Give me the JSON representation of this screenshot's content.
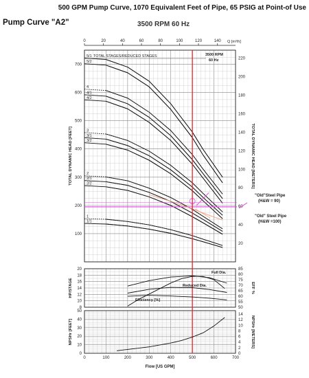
{
  "header": {
    "title": "500 GPM Pump Curve, 1070 Equivalent Feet of Pipe, 65 PSIG at Point-of Use",
    "subtitle": "Pump Curve \"A2\"",
    "speed": "3500 RPM 60 Hz"
  },
  "chart_data": [
    {
      "type": "line",
      "ylabel": "TOTAL DYNAMIC HEAD [FEET]",
      "y2label": "TOTAL DYNAMIC HEAD [METERS]",
      "top_xlabel": "Q [m³/h]",
      "ylim": [
        0,
        750
      ],
      "y2lim": [
        0,
        228.6
      ],
      "xlim": [
        0,
        700
      ],
      "yticks": [
        100,
        200,
        300,
        400,
        500,
        600,
        700
      ],
      "y2ticks": [
        20,
        40,
        60,
        80,
        100,
        120,
        140,
        160,
        180,
        200,
        220
      ],
      "top_xticks": [
        0,
        20,
        40,
        60,
        80,
        100,
        120,
        140
      ],
      "legend_header": "TOTAL STAGES/REDUCED STAGES",
      "speed_label": [
        "3500 RPM",
        "60 Hz"
      ],
      "series": [
        {
          "name": "5/1",
          "values": [
            [
              0,
              722
            ],
            [
              100,
              717
            ],
            [
              200,
              690
            ],
            [
              300,
              640
            ],
            [
              400,
              560
            ],
            [
              500,
              460
            ],
            [
              550,
              398
            ],
            [
              640,
              300
            ]
          ]
        },
        {
          "name": "5/2",
          "values": [
            [
              0,
              702
            ],
            [
              100,
              697
            ],
            [
              200,
              670
            ],
            [
              300,
              620
            ],
            [
              400,
              540
            ],
            [
              500,
              440
            ],
            [
              550,
              378
            ],
            [
              640,
              280
            ]
          ]
        },
        {
          "name": "4",
          "values": [
            [
              0,
              612
            ],
            [
              100,
              607
            ],
            [
              200,
              580
            ],
            [
              300,
              530
            ],
            [
              400,
              465
            ],
            [
              500,
              380
            ],
            [
              550,
              328
            ],
            [
              640,
              240
            ]
          ]
        },
        {
          "name": "4/1",
          "values": [
            [
              0,
              592
            ],
            [
              100,
              587
            ],
            [
              200,
              560
            ],
            [
              300,
              512
            ],
            [
              400,
              447
            ],
            [
              500,
              362
            ],
            [
              550,
              312
            ],
            [
              640,
              224
            ]
          ]
        },
        {
          "name": "4/2",
          "values": [
            [
              0,
              574
            ],
            [
              100,
              569
            ],
            [
              200,
              542
            ],
            [
              300,
              494
            ],
            [
              400,
              430
            ],
            [
              500,
              346
            ],
            [
              550,
              296
            ],
            [
              640,
              208
            ]
          ]
        },
        {
          "name": "3",
          "values": [
            [
              0,
              458
            ],
            [
              100,
              453
            ],
            [
              200,
              430
            ],
            [
              300,
              392
            ],
            [
              400,
              342
            ],
            [
              500,
              280
            ],
            [
              550,
              242
            ],
            [
              640,
              177
            ]
          ]
        },
        {
          "name": "3/1",
          "values": [
            [
              0,
              440
            ],
            [
              100,
              435
            ],
            [
              200,
              412
            ],
            [
              300,
              376
            ],
            [
              400,
              326
            ],
            [
              500,
              265
            ],
            [
              550,
              228
            ],
            [
              640,
              165
            ]
          ]
        },
        {
          "name": "3/2",
          "values": [
            [
              0,
              422
            ],
            [
              100,
              417
            ],
            [
              200,
              396
            ],
            [
              300,
              360
            ],
            [
              400,
              312
            ],
            [
              500,
              252
            ],
            [
              550,
              216
            ],
            [
              640,
              153
            ]
          ]
        },
        {
          "name": "2",
          "values": [
            [
              0,
              305
            ],
            [
              100,
              301
            ],
            [
              200,
              287
            ],
            [
              300,
              261
            ],
            [
              400,
              228
            ],
            [
              500,
              186
            ],
            [
              550,
              161
            ],
            [
              640,
              117
            ]
          ]
        },
        {
          "name": "2/1",
          "values": [
            [
              0,
              288
            ],
            [
              100,
              284
            ],
            [
              200,
              271
            ],
            [
              300,
              246
            ],
            [
              400,
              214
            ],
            [
              500,
              173
            ],
            [
              550,
              150
            ],
            [
              640,
              108
            ]
          ]
        },
        {
          "name": "2/2",
          "values": [
            [
              0,
              270
            ],
            [
              100,
              266
            ],
            [
              200,
              253
            ],
            [
              300,
              230
            ],
            [
              400,
              200
            ],
            [
              500,
              160
            ],
            [
              550,
              138
            ],
            [
              640,
              98
            ]
          ]
        },
        {
          "name": "1",
          "values": [
            [
              0,
              153
            ],
            [
              100,
              151
            ],
            [
              200,
              143
            ],
            [
              300,
              131
            ],
            [
              400,
              114
            ],
            [
              500,
              93
            ],
            [
              550,
              80
            ],
            [
              640,
              58
            ]
          ]
        },
        {
          "name": "1/1",
          "values": [
            [
              0,
              136
            ],
            [
              100,
              134
            ],
            [
              200,
              127
            ],
            [
              300,
              116
            ],
            [
              400,
              101
            ],
            [
              500,
              82
            ],
            [
              550,
              71
            ],
            [
              640,
              51
            ]
          ]
        }
      ],
      "operating_point": {
        "flow": 500,
        "head": 195
      },
      "annotations": [
        {
          "text": "\"Old\"Steel Pipe",
          "text2": "(H&W = 90)"
        },
        {
          "text": "\"Old\" Steel Pipe",
          "text2": "(H&W =100)"
        }
      ],
      "colors": {
        "duty_line": "#e8202a",
        "system_curve": "#e040e0",
        "system_curve_2": "#f0a080",
        "curve": "#111111"
      }
    },
    {
      "type": "line",
      "ylabel": "HP/STAGE",
      "y2label": "EFF %",
      "ylim": [
        8,
        20
      ],
      "yticks": [
        8,
        10,
        12,
        14,
        16,
        18,
        20
      ],
      "y2lim": [
        50,
        85
      ],
      "y2ticks": [
        50,
        55,
        60,
        65,
        70,
        75,
        80,
        85
      ],
      "series": [
        {
          "name": "Full Dia.",
          "values": [
            [
              200,
              14.6
            ],
            [
              300,
              16.3
            ],
            [
              400,
              17.4
            ],
            [
              500,
              17.8
            ],
            [
              580,
              17.2
            ],
            [
              660,
              15.5
            ]
          ]
        },
        {
          "name": "Reduced Dia.",
          "values": [
            [
              200,
              12.4
            ],
            [
              300,
              13.6
            ],
            [
              400,
              14.2
            ],
            [
              500,
              14.1
            ],
            [
              580,
              13.5
            ],
            [
              660,
              12.6
            ]
          ]
        },
        {
          "name": "Efficiency [%]",
          "values": [
            [
              200,
              51
            ],
            [
              250,
              57
            ],
            [
              300,
              62
            ],
            [
              350,
              67
            ],
            [
              400,
              72
            ],
            [
              450,
              76
            ],
            [
              500,
              78
            ],
            [
              550,
              78
            ],
            [
              600,
              75
            ],
            [
              650,
              67
            ]
          ]
        }
      ],
      "extra_line": {
        "name": "",
        "values": [
          [
            200,
            11.4
          ],
          [
            300,
            11.7
          ],
          [
            400,
            11.5
          ],
          [
            500,
            11.2
          ],
          [
            580,
            10.8
          ],
          [
            660,
            10.3
          ]
        ]
      }
    },
    {
      "type": "line",
      "ylabel": "NPSHr [FEET]",
      "y2label": "NPSHr [METERS]",
      "xlabel": "Flow [US GPM]",
      "ylim": [
        0,
        50
      ],
      "yticks": [
        0,
        10,
        20,
        30,
        40,
        50
      ],
      "y2lim": [
        0,
        15.24
      ],
      "y2ticks": [
        0,
        2,
        4,
        6,
        8,
        10,
        12,
        14
      ],
      "xlim": [
        0,
        700
      ],
      "xticks": [
        0,
        100,
        200,
        300,
        400,
        500,
        600,
        700
      ],
      "series": [
        {
          "name": "NPSHr",
          "values": [
            [
              150,
              3
            ],
            [
              200,
              4.5
            ],
            [
              300,
              7.5
            ],
            [
              400,
              12
            ],
            [
              450,
              15
            ],
            [
              500,
              19
            ],
            [
              550,
              24
            ],
            [
              600,
              32
            ],
            [
              650,
              42
            ]
          ]
        }
      ]
    }
  ]
}
